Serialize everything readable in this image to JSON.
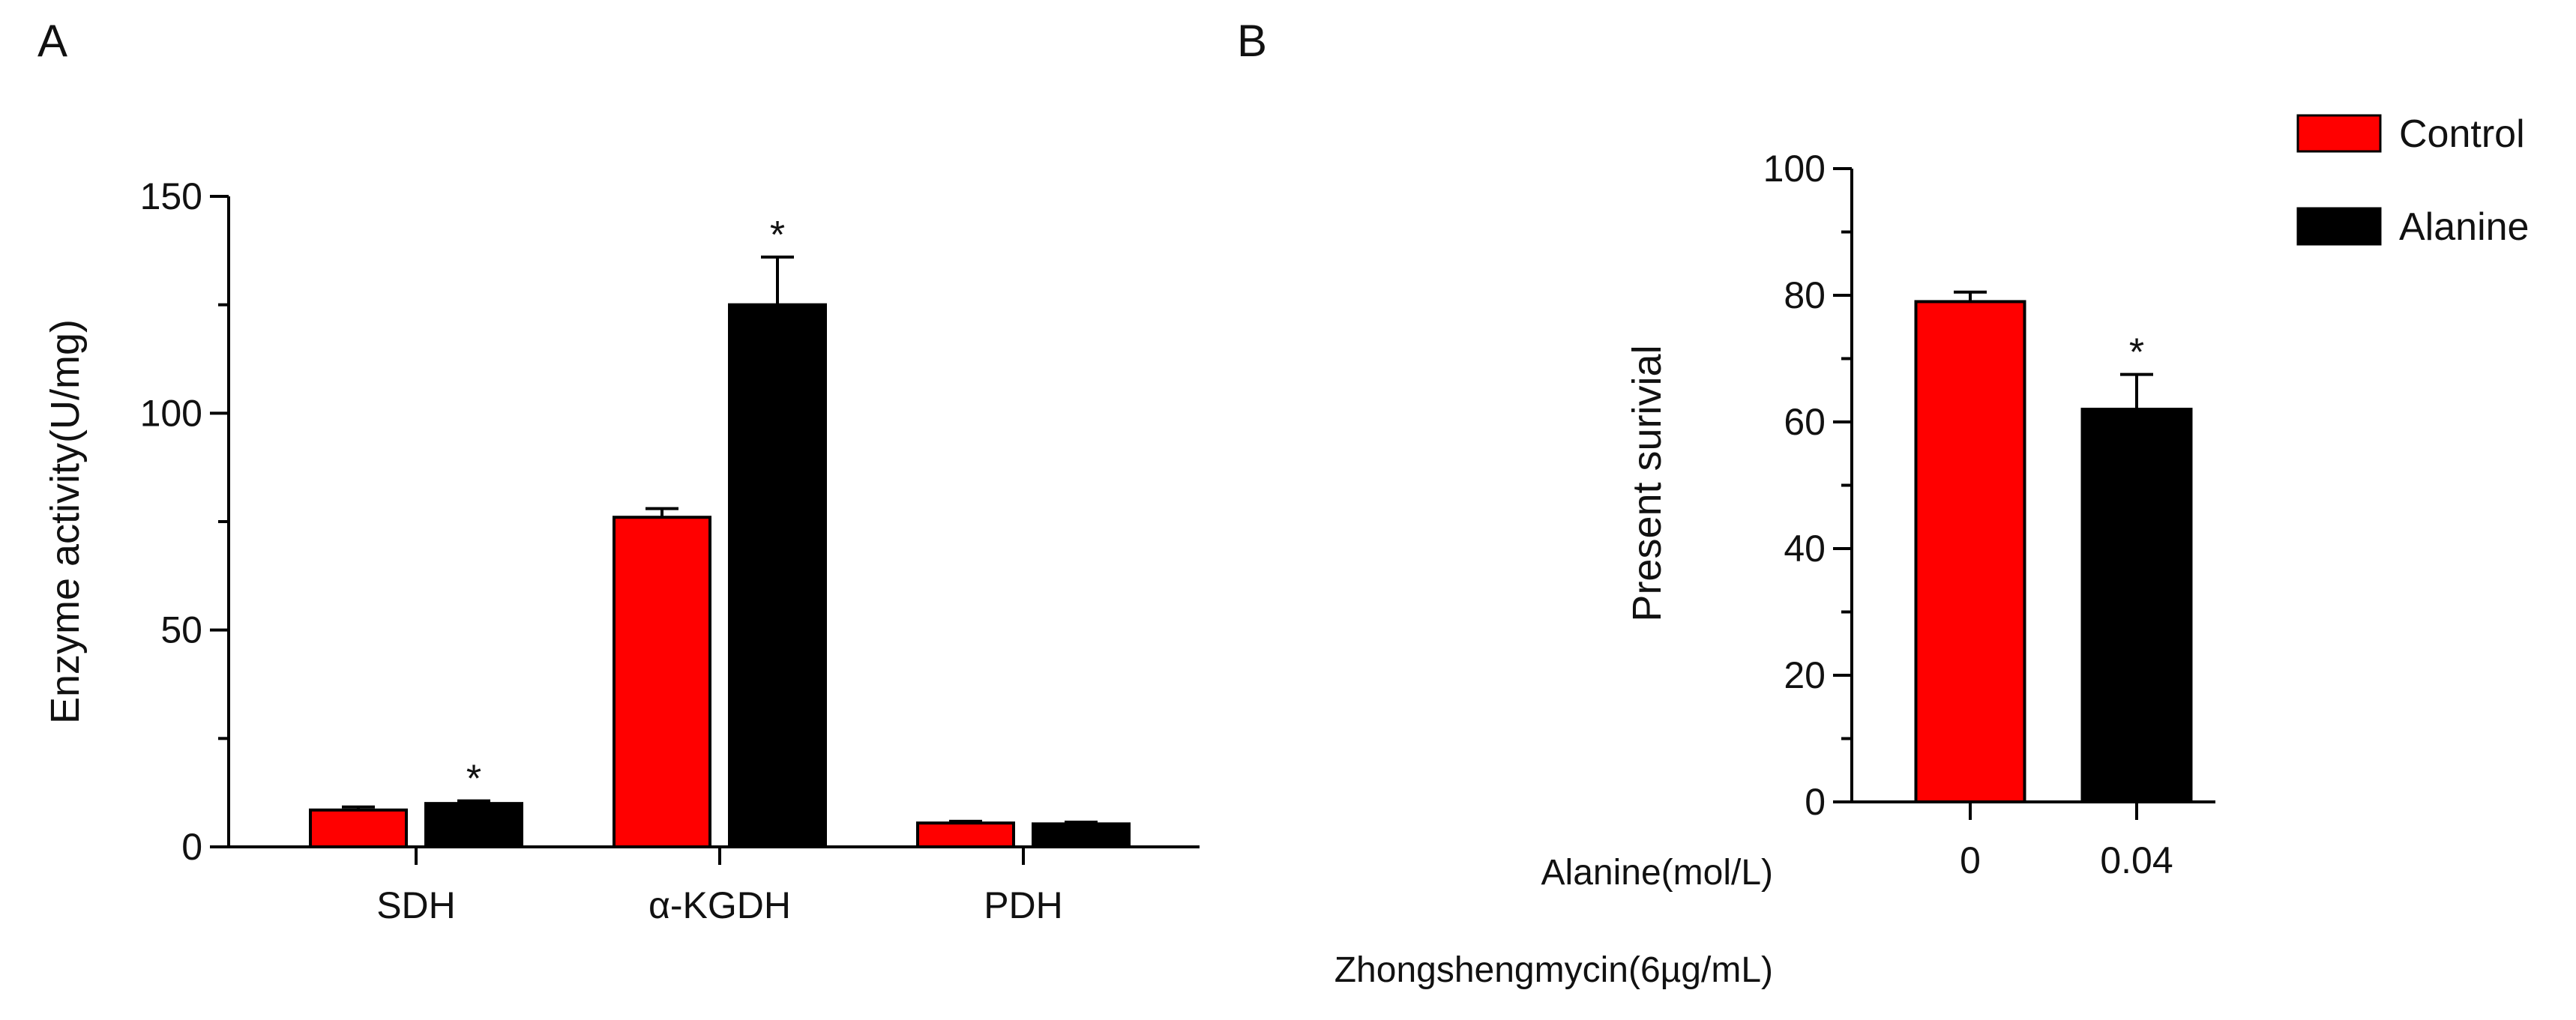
{
  "panels": {
    "a": "A",
    "b": "B"
  },
  "legend": [
    {
      "label": "Control",
      "color": "#ff0000"
    },
    {
      "label": "Alanine",
      "color": "#000000"
    }
  ],
  "chart_data": [
    {
      "type": "bar",
      "panel": "A",
      "title": "",
      "xlabel": "",
      "ylabel": "Enzyme activity(U/mg)",
      "ylim": [
        0,
        150
      ],
      "yticks": [
        0,
        50,
        100,
        150
      ],
      "categories": [
        "SDH",
        "α-KGDH",
        "PDH"
      ],
      "series": [
        {
          "name": "Control",
          "color": "#ff0000",
          "values": [
            8.5,
            76,
            5.5
          ],
          "errors": [
            0.7,
            2.0,
            0.4
          ]
        },
        {
          "name": "Alanine",
          "color": "#000000",
          "values": [
            10,
            125,
            5.3
          ],
          "errors": [
            0.6,
            11,
            0.4
          ]
        }
      ],
      "significance": [
        [
          "",
          "*"
        ],
        [
          "",
          "*"
        ],
        [
          "",
          ""
        ]
      ],
      "legend": "none",
      "grid": false
    },
    {
      "type": "bar",
      "panel": "B",
      "title": "",
      "ylabel": "Present surivial",
      "ylim": [
        0,
        100
      ],
      "yticks": [
        0,
        20,
        40,
        60,
        80,
        100
      ],
      "xlabel_rows": [
        "Alanine(mol/L)",
        "Zhongshengmycin(6µg/mL)"
      ],
      "categories": [
        "0",
        "0.04"
      ],
      "series": [
        {
          "name": "",
          "colors": [
            "#ff0000",
            "#000000"
          ],
          "values": [
            79,
            62
          ],
          "errors": [
            1.5,
            5.5
          ]
        }
      ],
      "significance": [
        "",
        "*"
      ],
      "legend": "top-right",
      "grid": false
    }
  ]
}
